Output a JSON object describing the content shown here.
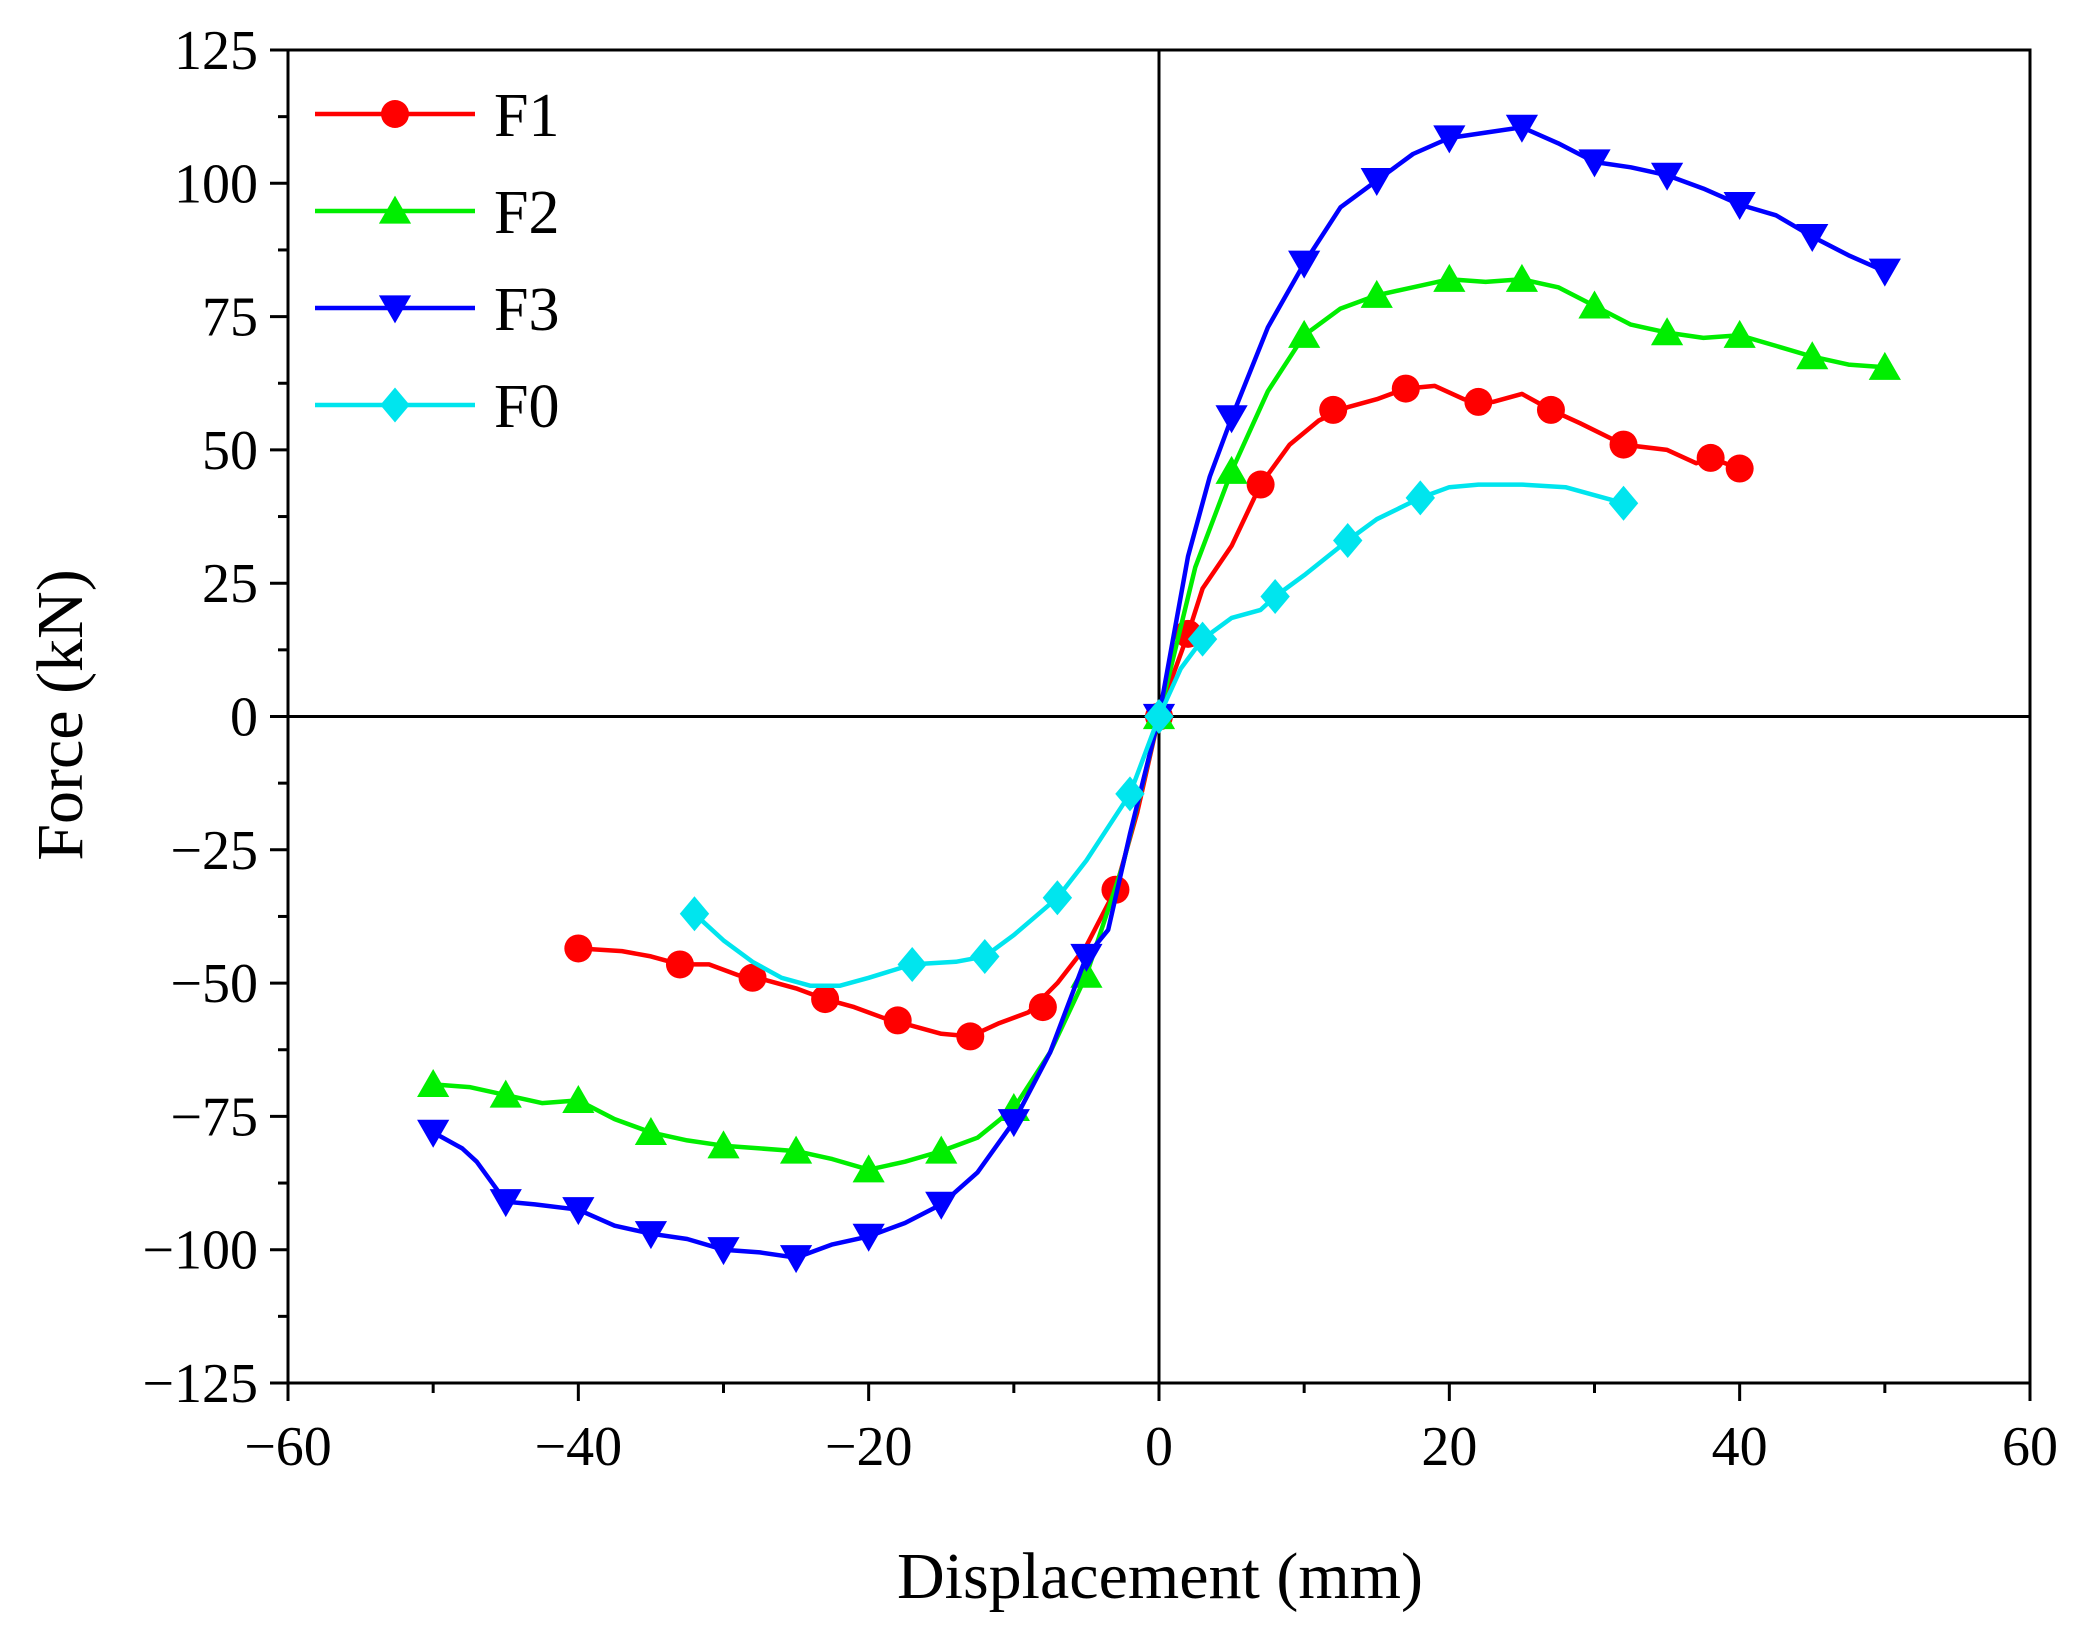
{
  "chart_data": {
    "type": "line",
    "title": "",
    "xlabel": "Displacement (mm)",
    "ylabel": "Force (kN)",
    "xlim": [
      -60,
      60
    ],
    "ylim": [
      -125,
      125
    ],
    "xticks": [
      -60,
      -40,
      -20,
      0,
      20,
      40,
      60
    ],
    "yticks": [
      -125,
      -100,
      -75,
      -50,
      -25,
      0,
      25,
      50,
      75,
      100,
      125
    ],
    "xtick_labels": [
      "−60",
      "−40",
      "−20",
      "0",
      "20",
      "40",
      "60"
    ],
    "ytick_labels": [
      "−125",
      "−100",
      "−75",
      "−50",
      "−25",
      "0",
      "25",
      "50",
      "75",
      "100",
      "125"
    ],
    "legend_position": "top-left",
    "grid": false,
    "series": [
      {
        "name": "F1",
        "color": "#ff0000",
        "marker": "circle",
        "x": [
          -40,
          -33,
          -28,
          -23,
          -18,
          -13,
          -8,
          -3,
          0,
          2,
          7,
          12,
          17,
          22,
          27,
          32,
          38,
          40
        ],
        "y": [
          -43.5,
          -46.5,
          -49,
          -53,
          -57,
          -60,
          -54.5,
          -32.5,
          0,
          15.5,
          43.5,
          57.5,
          61.5,
          59,
          57.5,
          51,
          48.5,
          46.5
        ],
        "line_x": [
          -40,
          -37,
          -35,
          -33,
          -31,
          -29,
          -27,
          -25,
          -23,
          -21,
          -19,
          -17,
          -15,
          -13,
          -11,
          -9,
          -7,
          -5,
          -3,
          -1.5,
          0,
          1,
          2,
          3,
          5,
          7,
          9,
          11,
          13,
          15,
          17,
          19,
          21,
          23,
          25,
          27,
          29,
          32,
          35,
          37,
          38,
          40
        ],
        "line_y": [
          -43.5,
          -44,
          -45,
          -46.5,
          -46.5,
          -48.5,
          -49.5,
          -51,
          -53,
          -54.5,
          -56.5,
          -58,
          -59.5,
          -60,
          -57.5,
          -55.5,
          -50,
          -43,
          -32.5,
          -18,
          0,
          8,
          15.5,
          24,
          32,
          43.5,
          51,
          55.5,
          58,
          59.5,
          61.5,
          62,
          59.5,
          59,
          60.5,
          57.5,
          55,
          51,
          50,
          47.5,
          48.5,
          46.5
        ]
      },
      {
        "name": "F2",
        "color": "#00ee00",
        "marker": "triangle-up",
        "x": [
          -50,
          -45,
          -40,
          -35,
          -30,
          -25,
          -20,
          -15,
          -10,
          -5,
          0,
          5,
          10,
          15,
          20,
          25,
          30,
          35,
          40,
          45,
          50
        ],
        "y": [
          -69,
          -71,
          -72,
          -78,
          -80.5,
          -81.5,
          -85,
          -81.5,
          -73.5,
          -48.5,
          0,
          46,
          71.5,
          79,
          82,
          82,
          77,
          72,
          71.5,
          67.5,
          65.5
        ],
        "line_x": [
          -50,
          -47.5,
          -45,
          -42.5,
          -40,
          -37.5,
          -35,
          -32.5,
          -30,
          -27.5,
          -25,
          -22.5,
          -20,
          -17.5,
          -15,
          -12.5,
          -10,
          -7.5,
          -5,
          -2.5,
          0,
          2.5,
          5,
          7.5,
          10,
          12.5,
          15,
          17.5,
          20,
          22.5,
          25,
          27.5,
          30,
          32.5,
          35,
          37.5,
          40,
          42.5,
          45,
          47.5,
          50
        ],
        "line_y": [
          -69,
          -69.5,
          -71,
          -72.5,
          -72,
          -75.5,
          -78,
          -79.5,
          -80.5,
          -81,
          -81.5,
          -83,
          -85,
          -83.5,
          -81.5,
          -79,
          -73.5,
          -63,
          -48.5,
          -28,
          0,
          28,
          46,
          61,
          71.5,
          76.5,
          79,
          80.5,
          82,
          81.5,
          82,
          80.5,
          77,
          73.5,
          72,
          71,
          71.5,
          69.5,
          67.5,
          66,
          65.5
        ]
      },
      {
        "name": "F3",
        "color": "#0000ff",
        "marker": "triangle-down",
        "x": [
          -50,
          -45,
          -40,
          -35,
          -30,
          -25,
          -20,
          -15,
          -10,
          -5,
          0,
          5,
          10,
          15,
          20,
          25,
          30,
          35,
          40,
          45,
          50
        ],
        "y": [
          -78,
          -91,
          -92.5,
          -97,
          -100,
          -101.5,
          -97.5,
          -91.5,
          -76,
          -45,
          0,
          56,
          85,
          100.5,
          108.5,
          110.5,
          104,
          101.5,
          96,
          90,
          83.5
        ],
        "line_x": [
          -50,
          -48,
          -47,
          -45,
          -43,
          -40,
          -37.5,
          -35,
          -32.5,
          -30,
          -27.5,
          -25,
          -22.5,
          -20,
          -17.5,
          -15,
          -12.5,
          -10,
          -7.5,
          -5,
          -3.5,
          -2,
          0,
          2,
          3.5,
          5,
          7.5,
          10,
          12.5,
          15,
          17.5,
          20,
          22.5,
          25,
          27.5,
          30,
          32.5,
          35,
          37.5,
          40,
          42.5,
          45,
          47.5,
          50
        ],
        "line_y": [
          -78,
          -81,
          -83.5,
          -91,
          -91.5,
          -92.5,
          -95.5,
          -97,
          -98,
          -100,
          -100.5,
          -101.5,
          -99,
          -97.5,
          -95,
          -91.5,
          -85.5,
          -76,
          -63,
          -45,
          -40,
          -22,
          0,
          30,
          45,
          56,
          73,
          85,
          95.5,
          100.5,
          105.5,
          108.5,
          109.5,
          110.5,
          107.5,
          104,
          103,
          101.5,
          99,
          96,
          94,
          90,
          86.5,
          83.5
        ]
      },
      {
        "name": "F0",
        "color": "#00e5ee",
        "marker": "diamond",
        "x": [
          -32,
          -17,
          -12,
          -7,
          -2,
          0,
          3,
          8,
          13,
          18,
          32
        ],
        "y": [
          -37,
          -46.5,
          -45,
          -34,
          -14.5,
          0,
          14.5,
          22.5,
          33,
          41,
          40
        ],
        "line_x": [
          -32,
          -30,
          -28,
          -26,
          -24,
          -22,
          -20,
          -17,
          -14,
          -12,
          -10,
          -7,
          -5,
          -2,
          0,
          1.5,
          3,
          5,
          7,
          8,
          10,
          13,
          15,
          18,
          20,
          22,
          25,
          28,
          30,
          32
        ],
        "line_y": [
          -37,
          -42,
          -46,
          -49,
          -50.5,
          -50.5,
          -49,
          -46.5,
          -46,
          -45,
          -41,
          -34,
          -27,
          -14.5,
          0,
          9,
          14.5,
          18.5,
          20,
          22.5,
          26.5,
          33,
          37,
          41,
          43,
          43.5,
          43.5,
          43,
          41.5,
          40
        ]
      }
    ]
  }
}
